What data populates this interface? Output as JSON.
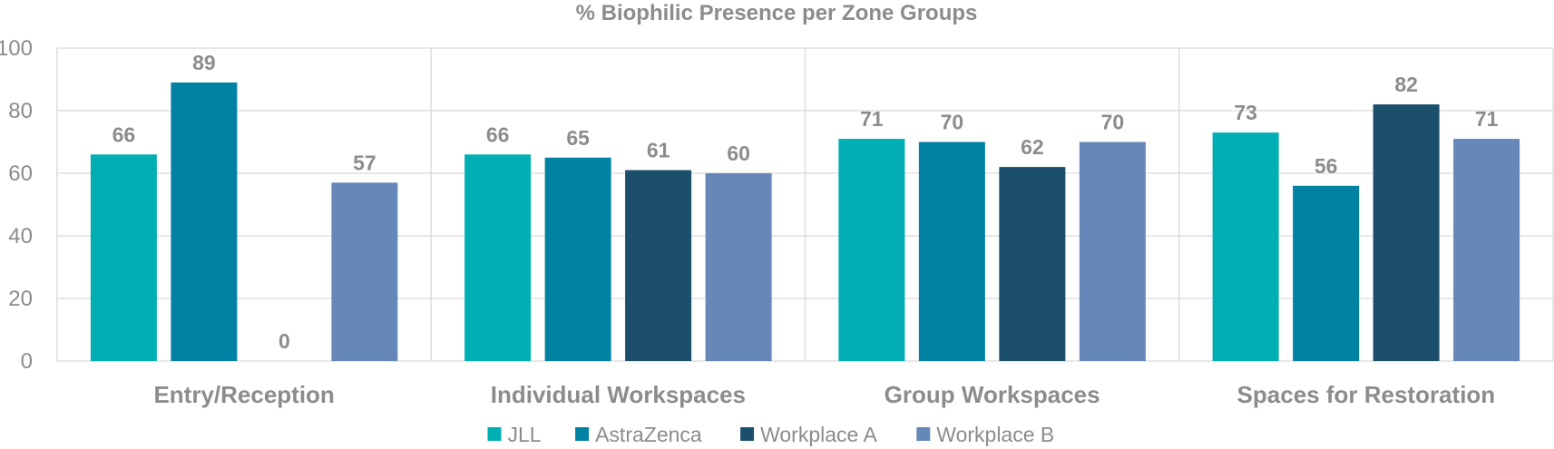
{
  "chart_data": {
    "type": "bar",
    "title": "% Biophilic Presence per Zone Groups",
    "xlabel": "",
    "ylabel": "",
    "ylim": [
      0,
      100
    ],
    "yticks": [
      0,
      20,
      40,
      60,
      80,
      100
    ],
    "grid": true,
    "legend_position": "bottom",
    "categories": [
      "Entry/Reception",
      "Individual Workspaces",
      "Group Workspaces",
      "Spaces for Restoration"
    ],
    "series": [
      {
        "name": "JLL",
        "color": "#00aeb3",
        "values": [
          66,
          66,
          71,
          73
        ]
      },
      {
        "name": "AstraZenca",
        "color": "#0182a3",
        "values": [
          89,
          65,
          70,
          56
        ]
      },
      {
        "name": "Workplace A",
        "color": "#1b4f6b",
        "values": [
          0,
          61,
          62,
          82
        ]
      },
      {
        "name": "Workplace B",
        "color": "#6688b8",
        "values": [
          57,
          60,
          70,
          71
        ]
      }
    ]
  }
}
